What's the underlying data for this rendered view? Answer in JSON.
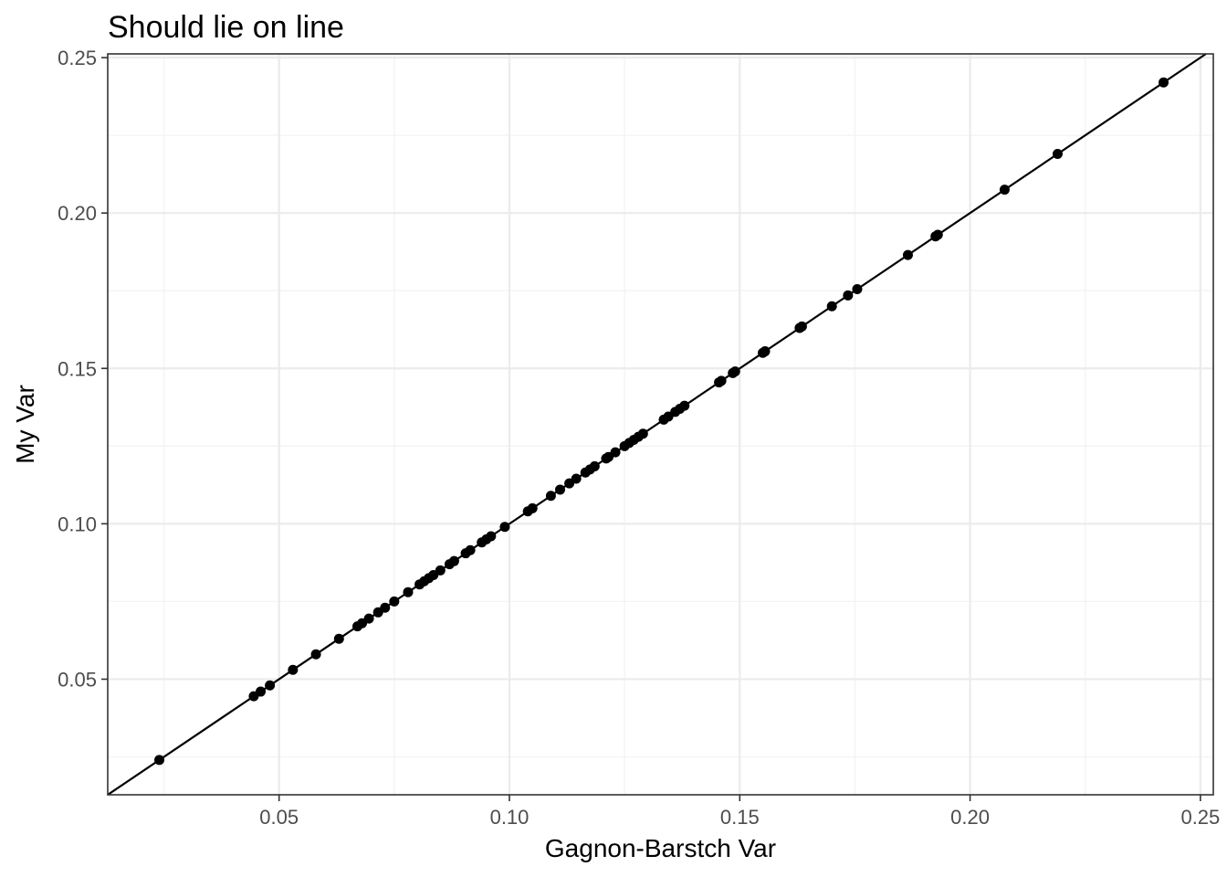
{
  "chart_data": {
    "type": "scatter",
    "title": "Should lie on line",
    "xlabel": "Gagnon-Barstch Var",
    "ylabel": "My Var",
    "xlim": [
      0.0128,
      0.2528
    ],
    "ylim": [
      0.0128,
      0.2512
    ],
    "xticks": [
      0.05,
      0.1,
      0.15,
      0.2,
      0.25
    ],
    "xtick_labels": [
      "0.05",
      "0.10",
      "0.15",
      "0.20",
      "0.25"
    ],
    "yticks": [
      0.05,
      0.1,
      0.15,
      0.2,
      0.25
    ],
    "ytick_labels": [
      "0.05",
      "0.10",
      "0.15",
      "0.20",
      "0.25"
    ],
    "grid": true,
    "reference_line": {
      "slope": 1,
      "intercept": 0
    },
    "colors": {
      "points": "#000000",
      "line": "#000000",
      "grid_major": "#ebebeb",
      "grid_minor": "#f3f3f3",
      "panel_border": "#333333"
    },
    "series": [
      {
        "x": [
          0.024,
          0.0445,
          0.046,
          0.048,
          0.053,
          0.058,
          0.063,
          0.067,
          0.068,
          0.0695,
          0.0715,
          0.073,
          0.075,
          0.078,
          0.0805,
          0.0815,
          0.0825,
          0.0835,
          0.085,
          0.087,
          0.088,
          0.0905,
          0.0915,
          0.094,
          0.095,
          0.096,
          0.099,
          0.104,
          0.105,
          0.109,
          0.111,
          0.113,
          0.1145,
          0.1165,
          0.1175,
          0.1185,
          0.121,
          0.1215,
          0.123,
          0.125,
          0.126,
          0.127,
          0.128,
          0.129,
          0.1335,
          0.1345,
          0.136,
          0.137,
          0.138,
          0.1455,
          0.146,
          0.1485,
          0.149,
          0.155,
          0.1555,
          0.163,
          0.1635,
          0.17,
          0.1735,
          0.1755,
          0.1865,
          0.1925,
          0.193,
          0.2075,
          0.219,
          0.242
        ],
        "y": [
          0.024,
          0.0445,
          0.046,
          0.048,
          0.053,
          0.058,
          0.063,
          0.067,
          0.068,
          0.0695,
          0.0715,
          0.073,
          0.075,
          0.078,
          0.0805,
          0.0815,
          0.0825,
          0.0835,
          0.085,
          0.087,
          0.088,
          0.0905,
          0.0915,
          0.094,
          0.095,
          0.096,
          0.099,
          0.104,
          0.105,
          0.109,
          0.111,
          0.113,
          0.1145,
          0.1165,
          0.1175,
          0.1185,
          0.121,
          0.1215,
          0.123,
          0.125,
          0.126,
          0.127,
          0.128,
          0.129,
          0.1335,
          0.1345,
          0.136,
          0.137,
          0.138,
          0.1455,
          0.146,
          0.1485,
          0.149,
          0.155,
          0.1555,
          0.163,
          0.1635,
          0.17,
          0.1735,
          0.1755,
          0.1865,
          0.1925,
          0.193,
          0.2075,
          0.219,
          0.242
        ]
      }
    ]
  }
}
